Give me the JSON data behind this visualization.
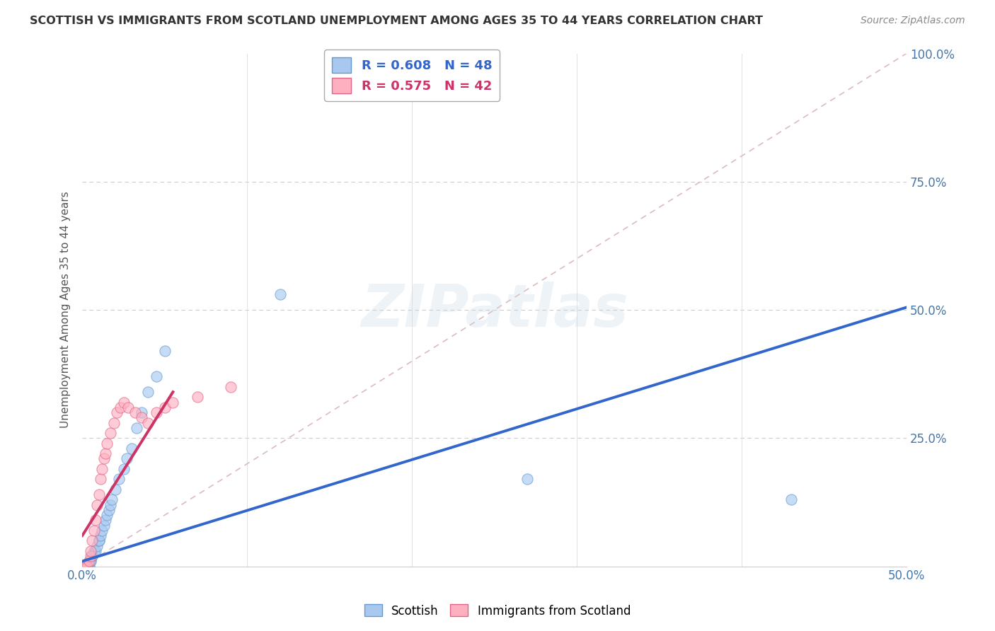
{
  "title": "SCOTTISH VS IMMIGRANTS FROM SCOTLAND UNEMPLOYMENT AMONG AGES 35 TO 44 YEARS CORRELATION CHART",
  "source": "Source: ZipAtlas.com",
  "ylabel_label": "Unemployment Among Ages 35 to 44 years",
  "xlim": [
    0.0,
    0.5
  ],
  "ylim": [
    0.0,
    1.0
  ],
  "watermark": "ZIPatlas",
  "scottish_scatter": {
    "color": "#a8c8f0",
    "edgecolor": "#6699cc",
    "alpha": 0.65,
    "size": 120,
    "x": [
      0.0,
      0.0,
      0.0,
      0.0,
      0.0,
      0.0,
      0.0,
      0.0,
      0.0,
      0.0,
      0.001,
      0.001,
      0.002,
      0.002,
      0.003,
      0.003,
      0.004,
      0.004,
      0.005,
      0.005,
      0.006,
      0.006,
      0.007,
      0.008,
      0.009,
      0.01,
      0.01,
      0.011,
      0.012,
      0.013,
      0.014,
      0.015,
      0.016,
      0.017,
      0.018,
      0.02,
      0.022,
      0.025,
      0.027,
      0.03,
      0.033,
      0.036,
      0.04,
      0.045,
      0.05,
      0.12,
      0.27,
      0.43
    ],
    "y": [
      0.0,
      0.0,
      0.0,
      0.0,
      0.0,
      0.0,
      0.0,
      0.0,
      0.0,
      0.0,
      0.0,
      0.0,
      0.0,
      0.0,
      0.0,
      0.0,
      0.0,
      0.0,
      0.01,
      0.01,
      0.02,
      0.02,
      0.03,
      0.03,
      0.04,
      0.05,
      0.05,
      0.06,
      0.07,
      0.08,
      0.09,
      0.1,
      0.11,
      0.12,
      0.13,
      0.15,
      0.17,
      0.19,
      0.21,
      0.23,
      0.27,
      0.3,
      0.34,
      0.37,
      0.42,
      0.53,
      0.17,
      0.13
    ]
  },
  "immigrants_scatter": {
    "color": "#ffb0c0",
    "edgecolor": "#dd6688",
    "alpha": 0.65,
    "size": 120,
    "x": [
      0.0,
      0.0,
      0.0,
      0.0,
      0.0,
      0.0,
      0.0,
      0.0,
      0.0,
      0.0,
      0.0,
      0.001,
      0.001,
      0.002,
      0.003,
      0.004,
      0.005,
      0.005,
      0.006,
      0.007,
      0.008,
      0.009,
      0.01,
      0.011,
      0.012,
      0.013,
      0.014,
      0.015,
      0.017,
      0.019,
      0.021,
      0.023,
      0.025,
      0.028,
      0.032,
      0.036,
      0.04,
      0.045,
      0.05,
      0.055,
      0.07,
      0.09
    ],
    "y": [
      0.0,
      0.0,
      0.0,
      0.0,
      0.0,
      0.0,
      0.0,
      0.0,
      0.0,
      0.0,
      0.0,
      0.0,
      0.0,
      0.0,
      0.0,
      0.01,
      0.02,
      0.03,
      0.05,
      0.07,
      0.09,
      0.12,
      0.14,
      0.17,
      0.19,
      0.21,
      0.22,
      0.24,
      0.26,
      0.28,
      0.3,
      0.31,
      0.32,
      0.31,
      0.3,
      0.29,
      0.28,
      0.3,
      0.31,
      0.32,
      0.33,
      0.35
    ]
  },
  "blue_line": {
    "x0": 0.0,
    "x1": 0.5,
    "y0": 0.01,
    "y1": 0.505
  },
  "pink_line": {
    "x0": 0.0,
    "x1": 0.055,
    "y0": 0.06,
    "y1": 0.34
  },
  "diagonal_line": {
    "x0": 0.0,
    "x1": 0.5,
    "y0": 0.0,
    "y1": 1.0
  },
  "background_color": "#ffffff",
  "title_color": "#333333",
  "tick_label_color": "#4477aa"
}
